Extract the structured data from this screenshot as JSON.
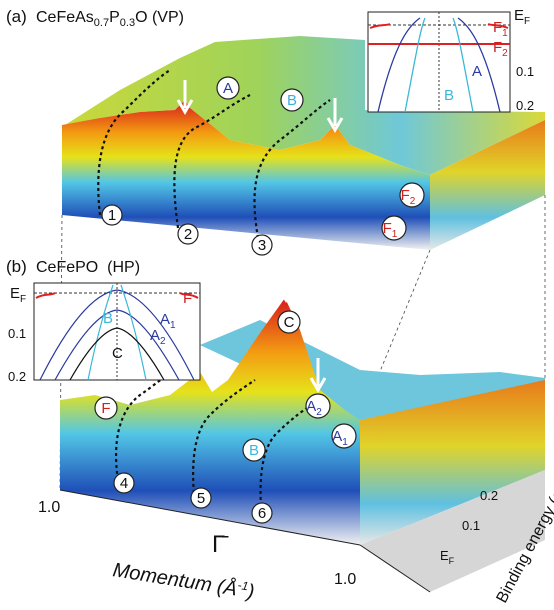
{
  "panel_a": {
    "label": "(a)",
    "title": {
      "main1": "CeFeAs",
      "sub1": "0.7",
      "main2": "P",
      "sub2": "0.3",
      "main3": "O (VP)"
    },
    "features": {
      "A": "A",
      "B": "B",
      "F2": {
        "main": "F",
        "sub": "2"
      },
      "F1": {
        "main": "F",
        "sub": "1"
      }
    },
    "cuts": [
      "1",
      "2",
      "3"
    ],
    "inset": {
      "ef": {
        "main": "E",
        "sub": "F"
      },
      "f1": {
        "main": "F",
        "sub": "1"
      },
      "f2": {
        "main": "F",
        "sub": "2"
      },
      "y1": "0.1",
      "y2": "0.2",
      "a": "A",
      "b": "B"
    }
  },
  "panel_b": {
    "label": "(b)",
    "title": "CeFePO  (HP)",
    "features": {
      "C": "C",
      "A2": {
        "main": "A",
        "sub": "2"
      },
      "A1": {
        "main": "A",
        "sub": "1"
      },
      "B": "B",
      "F": "F"
    },
    "cuts": [
      "4",
      "5",
      "6"
    ],
    "inset": {
      "ef": {
        "main": "E",
        "sub": "F"
      },
      "f": "F",
      "y1": "0.1",
      "y2": "0.2",
      "b": "B",
      "a1": {
        "main": "A",
        "sub": "1"
      },
      "a2": {
        "main": "A",
        "sub": "2"
      },
      "c": "C"
    }
  },
  "axes": {
    "momentum_left": "1.0",
    "gamma": "Γ̄",
    "momentum_right": "1.0",
    "momentum_label": {
      "main": "Momentum (Å",
      "sup": "-1",
      "end": ")"
    },
    "energy_label": "Binding energy (eV)",
    "energy_ticks": [
      "0.2",
      "0.1"
    ],
    "energy_ef": {
      "main": "E",
      "sub": "F"
    }
  }
}
